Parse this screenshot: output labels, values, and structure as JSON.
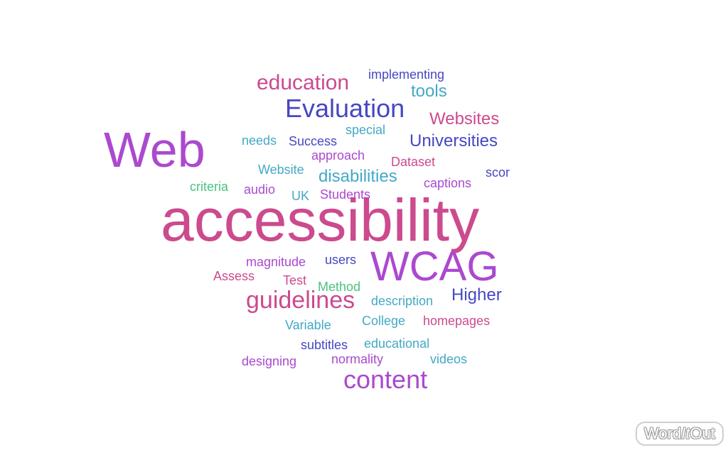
{
  "colors": {
    "magenta": "#cc4a8e",
    "purple": "#ab49cf",
    "indigo": "#4747c2",
    "teal": "#43a9c6",
    "green": "#49c281"
  },
  "words": [
    {
      "text": "accessibility",
      "color": "#cc4a8e",
      "size": 84
    },
    {
      "text": "Web",
      "color": "#ab49cf",
      "size": 70
    },
    {
      "text": "WCAG",
      "color": "#ab49cf",
      "size": 58
    },
    {
      "text": "Evaluation",
      "color": "#4747c2",
      "size": 36
    },
    {
      "text": "guidelines",
      "color": "#cc4a8e",
      "size": 34
    },
    {
      "text": "content",
      "color": "#ab49cf",
      "size": 36
    },
    {
      "text": "education",
      "color": "#cc4a8e",
      "size": 30
    },
    {
      "text": "Websites",
      "color": "#cc4a8e",
      "size": 24
    },
    {
      "text": "Universities",
      "color": "#4747c2",
      "size": 24
    },
    {
      "text": "disabilities",
      "color": "#43a9c6",
      "size": 24
    },
    {
      "text": "tools",
      "color": "#43a9c6",
      "size": 24
    },
    {
      "text": "Higher",
      "color": "#4747c2",
      "size": 24
    },
    {
      "text": "implementing",
      "color": "#4747c2",
      "size": 18
    },
    {
      "text": "special",
      "color": "#43a9c6",
      "size": 18
    },
    {
      "text": "needs",
      "color": "#43a9c6",
      "size": 18
    },
    {
      "text": "Success",
      "color": "#4747c2",
      "size": 18
    },
    {
      "text": "approach",
      "color": "#ab49cf",
      "size": 18
    },
    {
      "text": "Dataset",
      "color": "#cc4a8e",
      "size": 18
    },
    {
      "text": "Website",
      "color": "#43a9c6",
      "size": 18
    },
    {
      "text": "scor",
      "color": "#4747c2",
      "size": 18
    },
    {
      "text": "criteria",
      "color": "#49c281",
      "size": 18
    },
    {
      "text": "audio",
      "color": "#ab49cf",
      "size": 18
    },
    {
      "text": "UK",
      "color": "#43a9c6",
      "size": 18
    },
    {
      "text": "Students",
      "color": "#ab49cf",
      "size": 18
    },
    {
      "text": "captions",
      "color": "#ab49cf",
      "size": 18
    },
    {
      "text": "magnitude",
      "color": "#ab49cf",
      "size": 18
    },
    {
      "text": "users",
      "color": "#4747c2",
      "size": 18
    },
    {
      "text": "Assess",
      "color": "#cc4a8e",
      "size": 18
    },
    {
      "text": "Test",
      "color": "#cc4a8e",
      "size": 18
    },
    {
      "text": "Method",
      "color": "#49c281",
      "size": 18
    },
    {
      "text": "description",
      "color": "#43a9c6",
      "size": 18
    },
    {
      "text": "College",
      "color": "#43a9c6",
      "size": 18
    },
    {
      "text": "homepages",
      "color": "#cc4a8e",
      "size": 18
    },
    {
      "text": "Variable",
      "color": "#43a9c6",
      "size": 18
    },
    {
      "text": "educational",
      "color": "#43a9c6",
      "size": 18
    },
    {
      "text": "subtitles",
      "color": "#4747c2",
      "size": 18
    },
    {
      "text": "normality",
      "color": "#ab49cf",
      "size": 18
    },
    {
      "text": "videos",
      "color": "#43a9c6",
      "size": 18
    },
    {
      "text": "designing",
      "color": "#ab49cf",
      "size": 18
    }
  ],
  "logo": {
    "part1": "Word",
    "part2": "It",
    "part3": "Out"
  }
}
